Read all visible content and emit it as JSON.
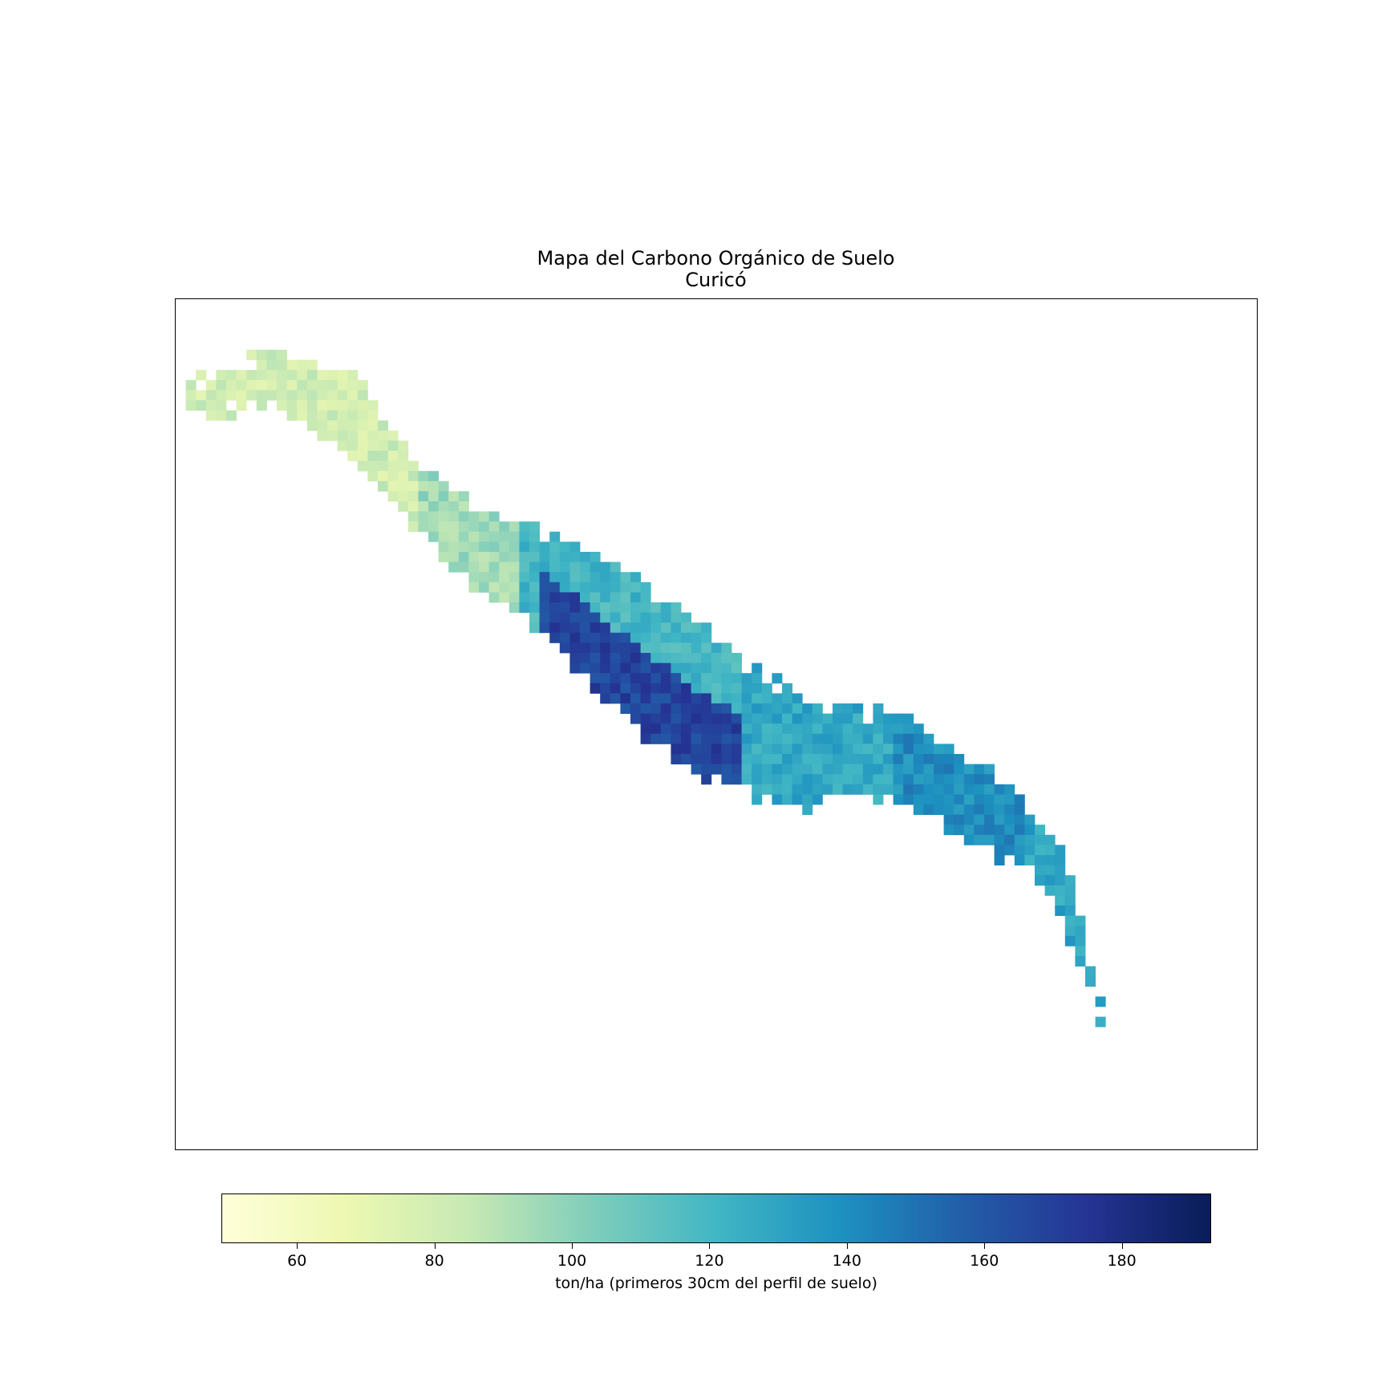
{
  "title": {
    "line1": "Mapa del Carbono Orgánico de Suelo",
    "line2": "Curicó"
  },
  "colorbar": {
    "label": "ton/ha (primeros 30cm del perfil de suelo)",
    "range": [
      49,
      193
    ],
    "ticks": [
      "60",
      "80",
      "100",
      "120",
      "140",
      "160",
      "180"
    ],
    "colormap": [
      "#ffffd9",
      "#edf8b1",
      "#c7e9b4",
      "#7fcdbb",
      "#41b6c4",
      "#1d91c0",
      "#225ea8",
      "#253494",
      "#081d58"
    ]
  },
  "chart_data": {
    "type": "heatmap",
    "title": "Mapa del Carbono Orgánico de Suelo\nCuricó",
    "colorbar_label": "ton/ha (primeros 30cm del perfil de suelo)",
    "value_range": [
      49,
      193
    ],
    "colormap": "YlGnBu",
    "regions": [
      {
        "area": "northwest",
        "value": 80
      },
      {
        "area": "upper-middle",
        "value": 95
      },
      {
        "area": "central-west",
        "value": 160
      },
      {
        "area": "central-core",
        "value": 180
      },
      {
        "area": "central-east",
        "value": 128
      },
      {
        "area": "east",
        "value": 140
      },
      {
        "area": "southeast",
        "value": 130
      }
    ]
  }
}
